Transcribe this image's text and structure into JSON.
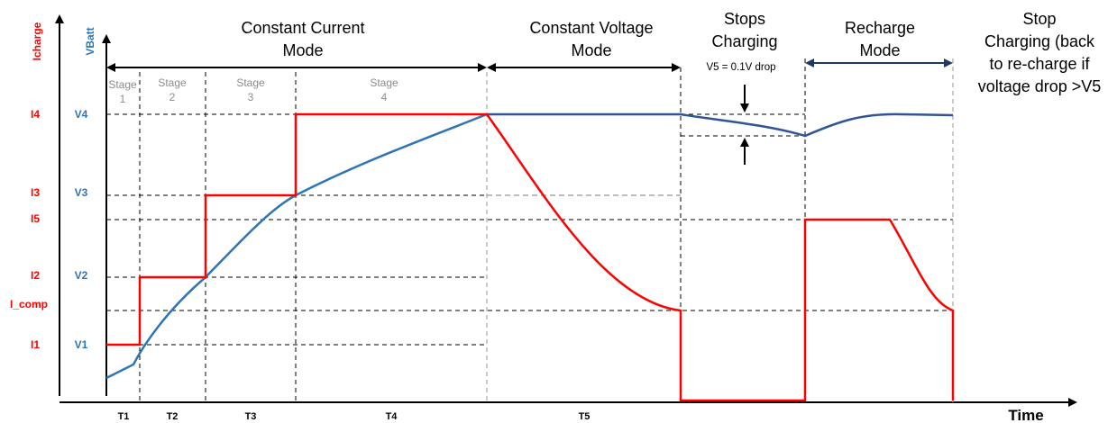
{
  "axes": {
    "y_current_label": "Icharge",
    "y_voltage_label": "VBatt",
    "x_label": "Time"
  },
  "current_levels": [
    "I4",
    "I3",
    "I5",
    "I2",
    "I_comp",
    "I1"
  ],
  "voltage_levels": [
    "V4",
    "V3",
    "V2",
    "V1"
  ],
  "modes": {
    "cc": [
      "Constant Current",
      "Mode"
    ],
    "cv": [
      "Constant Voltage",
      "Mode"
    ],
    "stop": [
      "Stops",
      "Charging"
    ],
    "recharge": [
      "Recharge",
      "Mode"
    ],
    "stop_back": [
      "Stop",
      "Charging (back",
      "to re-charge if",
      "voltage drop >V5"
    ]
  },
  "v5_note": "V5 = 0.1V drop",
  "stages": [
    [
      "Stage",
      "1"
    ],
    [
      "Stage",
      "2"
    ],
    [
      "Stage",
      "3"
    ],
    [
      "Stage",
      "4"
    ]
  ],
  "time_segments": [
    "T1",
    "T2",
    "T3",
    "T4",
    "T5"
  ],
  "colors": {
    "current": "#ff0000",
    "voltage_light": "#2e75b6",
    "voltage_dark": "#2f5597",
    "guide": "#000000",
    "guide_gray": "#a6a6a6"
  }
}
